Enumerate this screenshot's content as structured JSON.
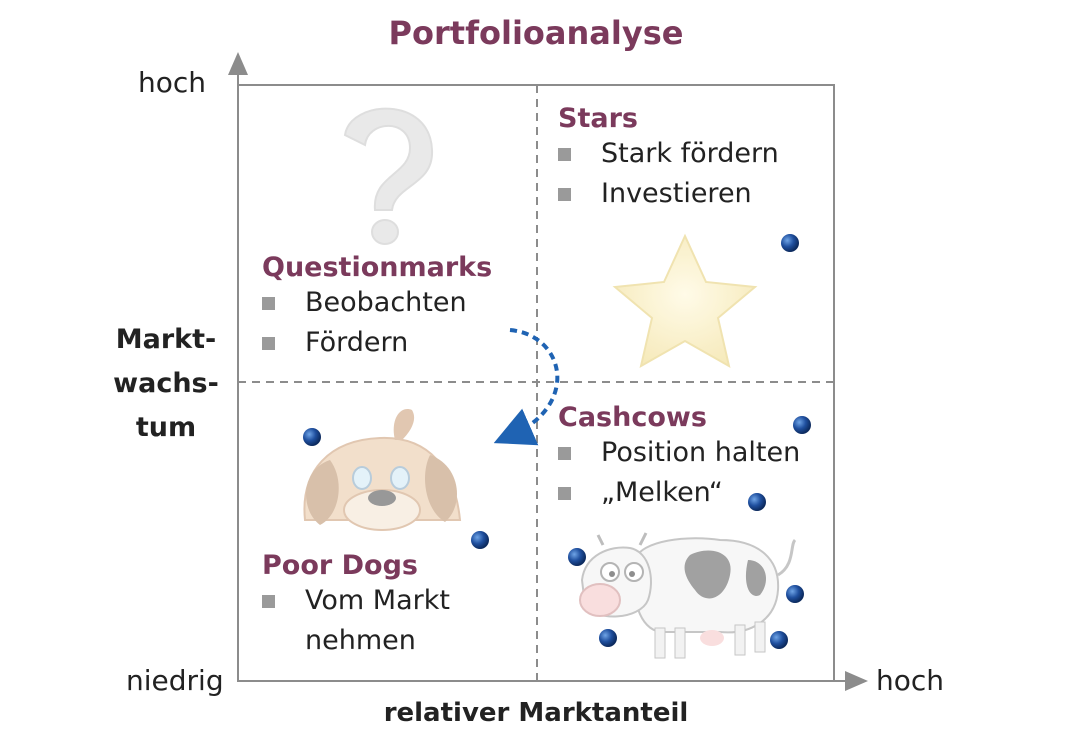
{
  "title": "Portfolioanalyse",
  "colors": {
    "accent": "#7b3a5c",
    "frame": "#8c8c8c",
    "arrow": "#1f63b3",
    "dot": "#1f4f9e"
  },
  "y_axis": {
    "label": "Markt-\nwachs-\ntum",
    "high": "hoch",
    "low": "niedrig"
  },
  "x_axis": {
    "label": "relativer Marktanteil",
    "high": "hoch"
  },
  "quadrants": {
    "questionmarks": {
      "title": "Questionmarks",
      "items": [
        "Beobachten",
        "Fördern"
      ],
      "icon": "question-mark-icon"
    },
    "stars": {
      "title": "Stars",
      "items": [
        "Stark fördern",
        "Investieren"
      ],
      "icon": "star-icon"
    },
    "poor_dogs": {
      "title": "Poor Dogs",
      "items": [
        "Vom Markt nehmen"
      ],
      "icon": "dog-icon"
    },
    "cashcows": {
      "title": "Cashcows",
      "items": [
        "Position halten",
        "„Melken“"
      ],
      "icon": "cow-icon"
    }
  }
}
